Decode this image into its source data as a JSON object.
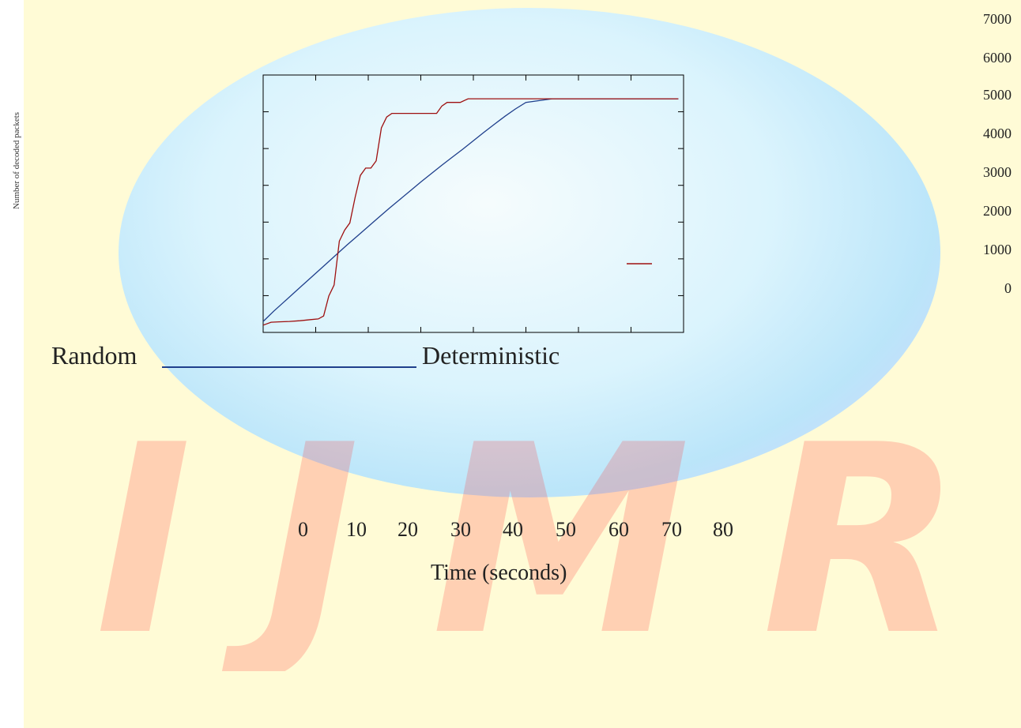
{
  "watermark": {
    "text": "IJMRA"
  },
  "colors": {
    "random": "#9e1010",
    "deterministic": "#1f3f8c",
    "frame": "#000000"
  },
  "chart_data": {
    "type": "line",
    "ylabel": "Number of decoded packets",
    "xlabel": "Time (seconds)",
    "xlim": [
      0,
      80
    ],
    "ylim": [
      0,
      7000
    ],
    "x_ticks": [
      "0",
      "10",
      "20",
      "30",
      "40",
      "50",
      "60",
      "70",
      "80"
    ],
    "y_ticks": [
      "7000",
      "6000",
      "5000",
      "4000",
      "3000",
      "2000",
      "1000",
      "0"
    ],
    "legend": {
      "position": "bottom-left",
      "entries": [
        "Random",
        "Deterministic"
      ]
    },
    "series": [
      {
        "name": "Random",
        "color": "#9e1010",
        "x": [
          0,
          1.5,
          3,
          5,
          7,
          9,
          10.5,
          11.5,
          12.5,
          13.5,
          14.5,
          15.5,
          16.5,
          17.5,
          18.5,
          19.5,
          20.5,
          21.5,
          22.5,
          23.5,
          24.5,
          25.5,
          27.5,
          30.5,
          33,
          34,
          35,
          36,
          37.5,
          39,
          40.5,
          42,
          44,
          46,
          48,
          50,
          55,
          60,
          65,
          70,
          79
        ],
        "y": [
          0,
          80,
          90,
          100,
          120,
          150,
          170,
          250,
          800,
          1100,
          2300,
          2600,
          2800,
          3500,
          4100,
          4300,
          4300,
          4500,
          5400,
          5700,
          5800,
          5800,
          5800,
          5800,
          5800,
          6000,
          6100,
          6100,
          6100,
          6200,
          6200,
          6200,
          6200,
          6200,
          6200,
          6200,
          6200,
          6200,
          6200,
          6200,
          6200
        ]
      },
      {
        "name": "Deterministic",
        "color": "#1f3f8c",
        "x": [
          0,
          2,
          4,
          6,
          8,
          10,
          12,
          14,
          16,
          18,
          20,
          22,
          24,
          26,
          28,
          30,
          32,
          34,
          36,
          38,
          40,
          42,
          44,
          46,
          48,
          50,
          55,
          60,
          65,
          70,
          79
        ],
        "y": [
          100,
          380,
          640,
          900,
          1160,
          1420,
          1680,
          1940,
          2200,
          2450,
          2700,
          2950,
          3200,
          3440,
          3680,
          3920,
          4150,
          4380,
          4600,
          4820,
          5050,
          5280,
          5500,
          5720,
          5920,
          6100,
          6200,
          6200,
          6200,
          6200,
          6200
        ]
      }
    ]
  }
}
